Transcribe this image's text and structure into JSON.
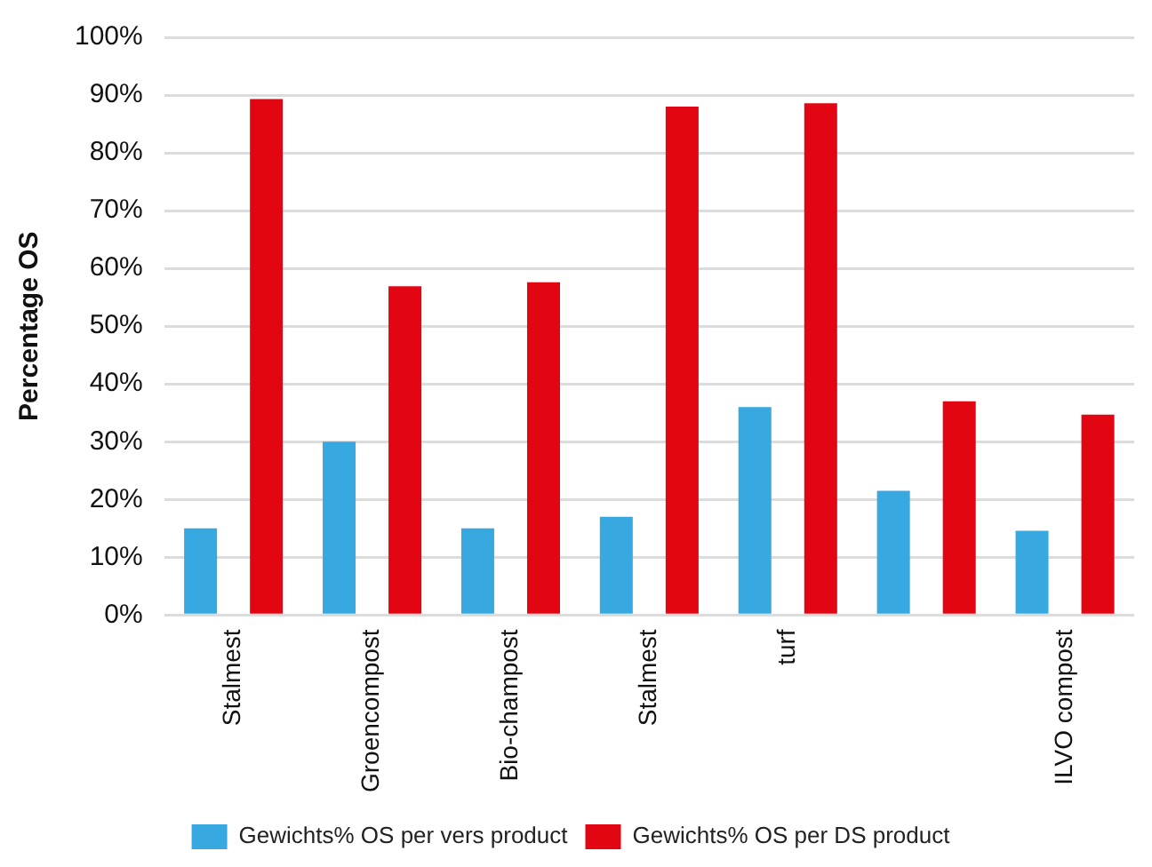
{
  "chart_data": {
    "type": "bar",
    "ylabel": "Percentage OS",
    "categories": [
      "Stalmest",
      "Groencompost",
      "Bio-champost",
      "Stalmest",
      "turf",
      null,
      "ILVO compost"
    ],
    "series": [
      {
        "name": "Gewichts% OS per vers product",
        "color": "#38a9e0",
        "values": [
          15,
          30,
          15,
          17,
          36,
          21.5,
          14.6
        ]
      },
      {
        "name": "Gewichts% OS per DS product",
        "color": "#e20613",
        "values": [
          89.3,
          56.9,
          57.6,
          88,
          88.6,
          37,
          34.7
        ]
      }
    ],
    "ylim": [
      0,
      100
    ],
    "yticks": [
      {
        "value": 0,
        "label": "0%"
      },
      {
        "value": 10,
        "label": "10%"
      },
      {
        "value": 20,
        "label": "20%"
      },
      {
        "value": 30,
        "label": "30%"
      },
      {
        "value": 40,
        "label": "40%"
      },
      {
        "value": 50,
        "label": "50%"
      },
      {
        "value": 60,
        "label": "60%"
      },
      {
        "value": 70,
        "label": "70%"
      },
      {
        "value": 80,
        "label": "80%"
      },
      {
        "value": 90,
        "label": "90%"
      },
      {
        "value": 100,
        "label": "100%"
      }
    ],
    "grid": "y",
    "legend": "bottom"
  }
}
